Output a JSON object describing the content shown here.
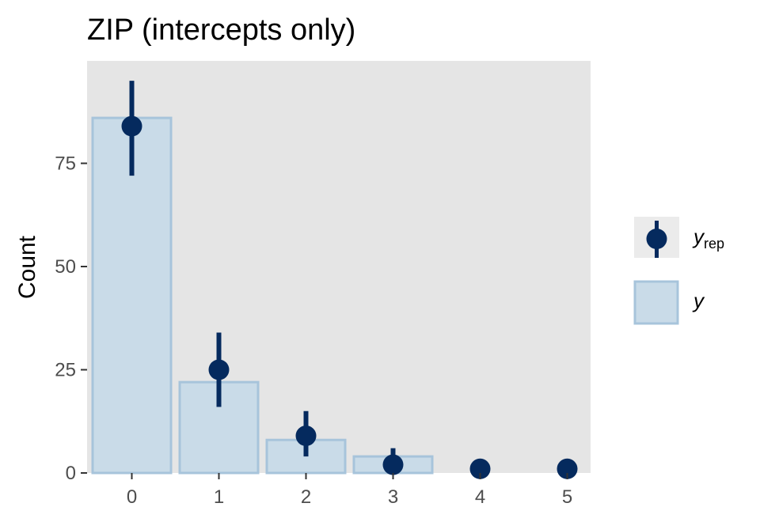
{
  "chart_data": {
    "type": "bar",
    "title": "ZIP (intercepts only)",
    "xlabel": "",
    "ylabel": "Count",
    "categories": [
      "0",
      "1",
      "2",
      "3",
      "4",
      "5"
    ],
    "x": [
      0,
      1,
      2,
      3,
      4,
      5
    ],
    "ylim": [
      0,
      95
    ],
    "yticks": [
      0,
      25,
      50,
      75
    ],
    "series": [
      {
        "name": "y",
        "type": "bar",
        "values": [
          86,
          22,
          8,
          4,
          0,
          0
        ]
      },
      {
        "name": "y_rep",
        "type": "pointrange",
        "values": [
          84,
          25,
          9,
          2,
          1,
          1
        ],
        "lower": [
          72,
          16,
          4,
          0,
          0,
          0
        ],
        "upper": [
          95,
          34,
          15,
          6,
          1,
          1
        ]
      }
    ],
    "legend": {
      "position": "right",
      "items": [
        {
          "key": "yrep",
          "text": "y",
          "sub": "rep"
        },
        {
          "key": "y",
          "text": "y"
        }
      ]
    },
    "grid": false,
    "colors": {
      "panel": "#e5e5e5",
      "bar_fill": "#c9dbe8",
      "bar_stroke": "#a7c4db",
      "point": "#052a5e",
      "axis_text": "#4d4d4d",
      "tick": "#333333"
    }
  }
}
